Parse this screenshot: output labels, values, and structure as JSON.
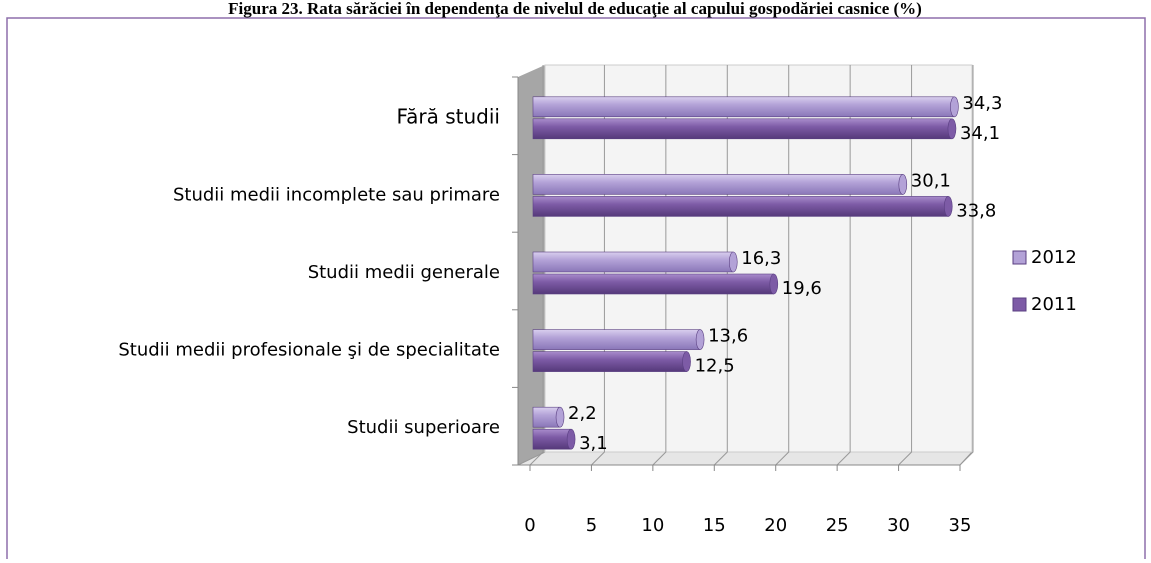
{
  "chart_data": {
    "type": "bar",
    "orientation": "horizontal",
    "title": "Figura 23. Rata sărăciei în dependenţa de nivelul de educaţie al capului gospodăriei casnice (%)",
    "categories": [
      "Fără studii",
      "Studii medii incomplete sau primare",
      "Studii medii generale",
      "Studii medii profesionale şi de specialitate",
      "Studii superioare"
    ],
    "series": [
      {
        "name": "2012",
        "color": "#b3a2d7",
        "values": [
          34.3,
          30.1,
          16.3,
          13.6,
          2.2
        ],
        "value_labels": [
          "34,3",
          "30,1",
          "16,3",
          "13,6",
          "2,2"
        ]
      },
      {
        "name": "2011",
        "color": "#7d5ba6",
        "values": [
          34.1,
          33.8,
          19.6,
          12.5,
          3.1
        ],
        "value_labels": [
          "34,1",
          "33,8",
          "19,6",
          "12,5",
          "3,1"
        ]
      }
    ],
    "xlim": [
      0,
      35
    ],
    "xticks": [
      0,
      5,
      10,
      15,
      20,
      25,
      30,
      35
    ],
    "grid": true,
    "legend": "right"
  }
}
